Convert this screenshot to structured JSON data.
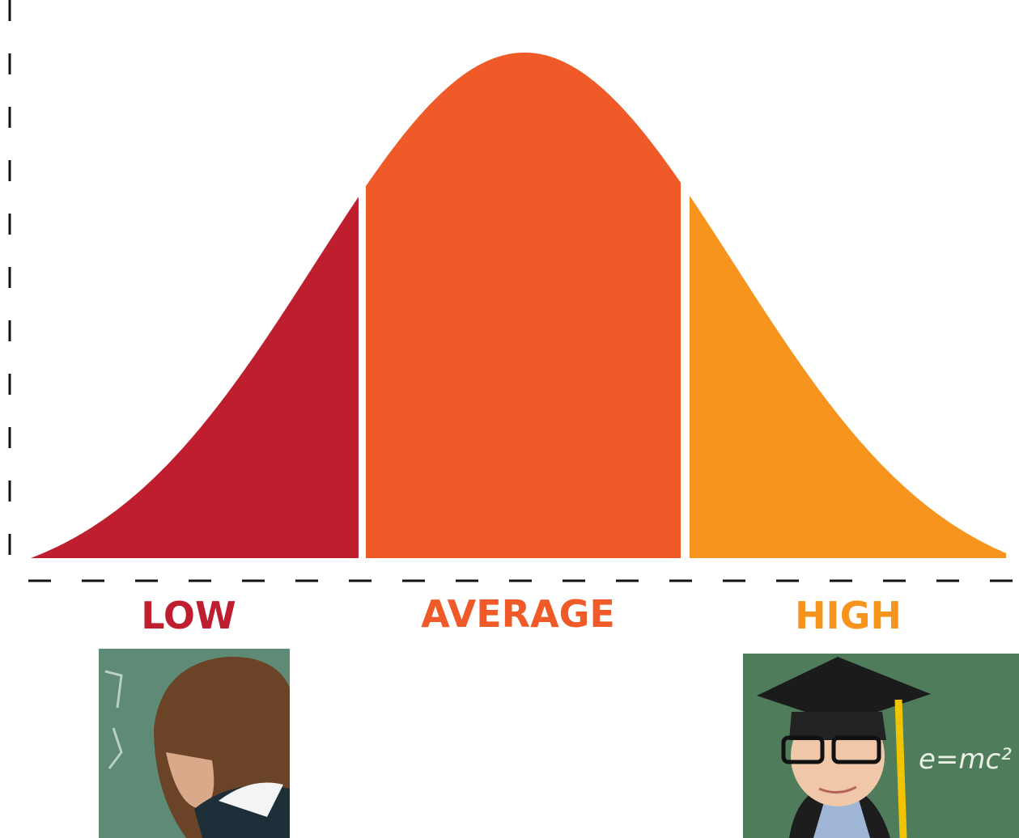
{
  "groups": [
    {
      "label": "LOW"
    },
    {
      "label": "AVERAGE"
    },
    {
      "label": "HIGH"
    }
  ],
  "high_photo": {
    "chalk_text": "e=mc²"
  }
}
